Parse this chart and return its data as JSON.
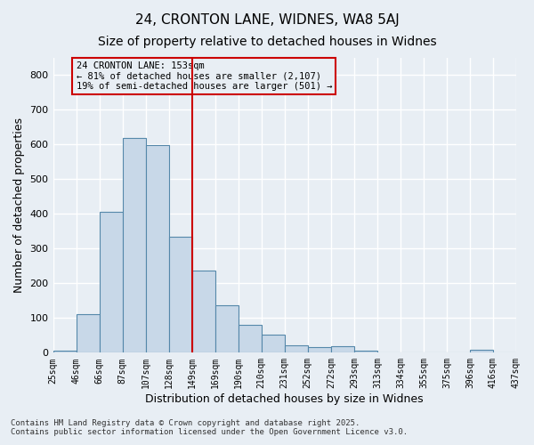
{
  "title1": "24, CRONTON LANE, WIDNES, WA8 5AJ",
  "title2": "Size of property relative to detached houses in Widnes",
  "xlabel": "Distribution of detached houses by size in Widnes",
  "ylabel": "Number of detached properties",
  "bin_labels": [
    "25sqm",
    "46sqm",
    "66sqm",
    "87sqm",
    "107sqm",
    "128sqm",
    "149sqm",
    "169sqm",
    "190sqm",
    "210sqm",
    "231sqm",
    "252sqm",
    "272sqm",
    "293sqm",
    "313sqm",
    "334sqm",
    "355sqm",
    "375sqm",
    "396sqm",
    "416sqm",
    "437sqm"
  ],
  "bar_values": [
    5,
    110,
    405,
    620,
    598,
    335,
    238,
    137,
    80,
    53,
    22,
    15,
    18,
    5,
    0,
    0,
    0,
    0,
    8,
    0
  ],
  "bar_color": "#c8d8e8",
  "bar_edge_color": "#5588aa",
  "vline_x": 6,
  "vline_color": "#cc0000",
  "annotation_text": "24 CRONTON LANE: 153sqm\n← 81% of detached houses are smaller (2,107)\n19% of semi-detached houses are larger (501) →",
  "annotation_box_color": "#cc0000",
  "annotation_text_color": "#000000",
  "ylim": [
    0,
    850
  ],
  "yticks": [
    0,
    100,
    200,
    300,
    400,
    500,
    600,
    700,
    800
  ],
  "background_color": "#e8eef4",
  "footer": "Contains HM Land Registry data © Crown copyright and database right 2025.\nContains public sector information licensed under the Open Government Licence v3.0.",
  "title1_fontsize": 11,
  "title2_fontsize": 10
}
